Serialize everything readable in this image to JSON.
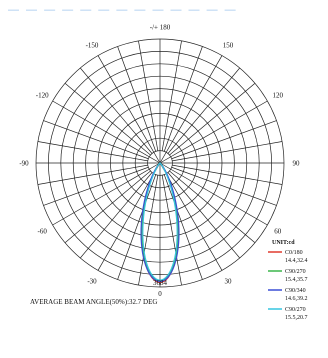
{
  "header_text": "— —  — — — —  — — — — — — —",
  "chart_data": {
    "type": "polar",
    "title": "",
    "angle_labels": [
      {
        "angle": 180,
        "text": "-/+ 180"
      },
      {
        "angle": -150,
        "text": "-150"
      },
      {
        "angle": 150,
        "text": "150"
      },
      {
        "angle": -120,
        "text": "-120"
      },
      {
        "angle": 120,
        "text": "120"
      },
      {
        "angle": -90,
        "text": "-90"
      },
      {
        "angle": 90,
        "text": "90"
      },
      {
        "angle": -60,
        "text": "-60"
      },
      {
        "angle": 60,
        "text": "60"
      },
      {
        "angle": -30,
        "text": "-30"
      },
      {
        "angle": 30,
        "text": "30"
      },
      {
        "angle": 0,
        "text": "0"
      }
    ],
    "radial_label": "3684",
    "unit_label": "UNIT:cd",
    "caption": "AVERAGE BEAM ANGLE(50%):32.7 DEG",
    "rlim": [
      0,
      3684
    ],
    "series": [
      {
        "name": "C0/180",
        "beam": "14.4,32.4",
        "color": "#e03a2f",
        "peak": 3550,
        "half_angle": 17.0
      },
      {
        "name": "C90/270",
        "beam": "15.4,35.7",
        "color": "#3ab54a",
        "peak": 3500,
        "half_angle": 17.5
      },
      {
        "name": "C90/340",
        "beam": "14.6,39.2",
        "color": "#3a4fd6",
        "peak": 3520,
        "half_angle": 18.0
      },
      {
        "name": "C90/270",
        "beam": "15.5,20.7",
        "color": "#35c6e0",
        "peak": 3480,
        "half_angle": 16.5
      }
    ]
  }
}
